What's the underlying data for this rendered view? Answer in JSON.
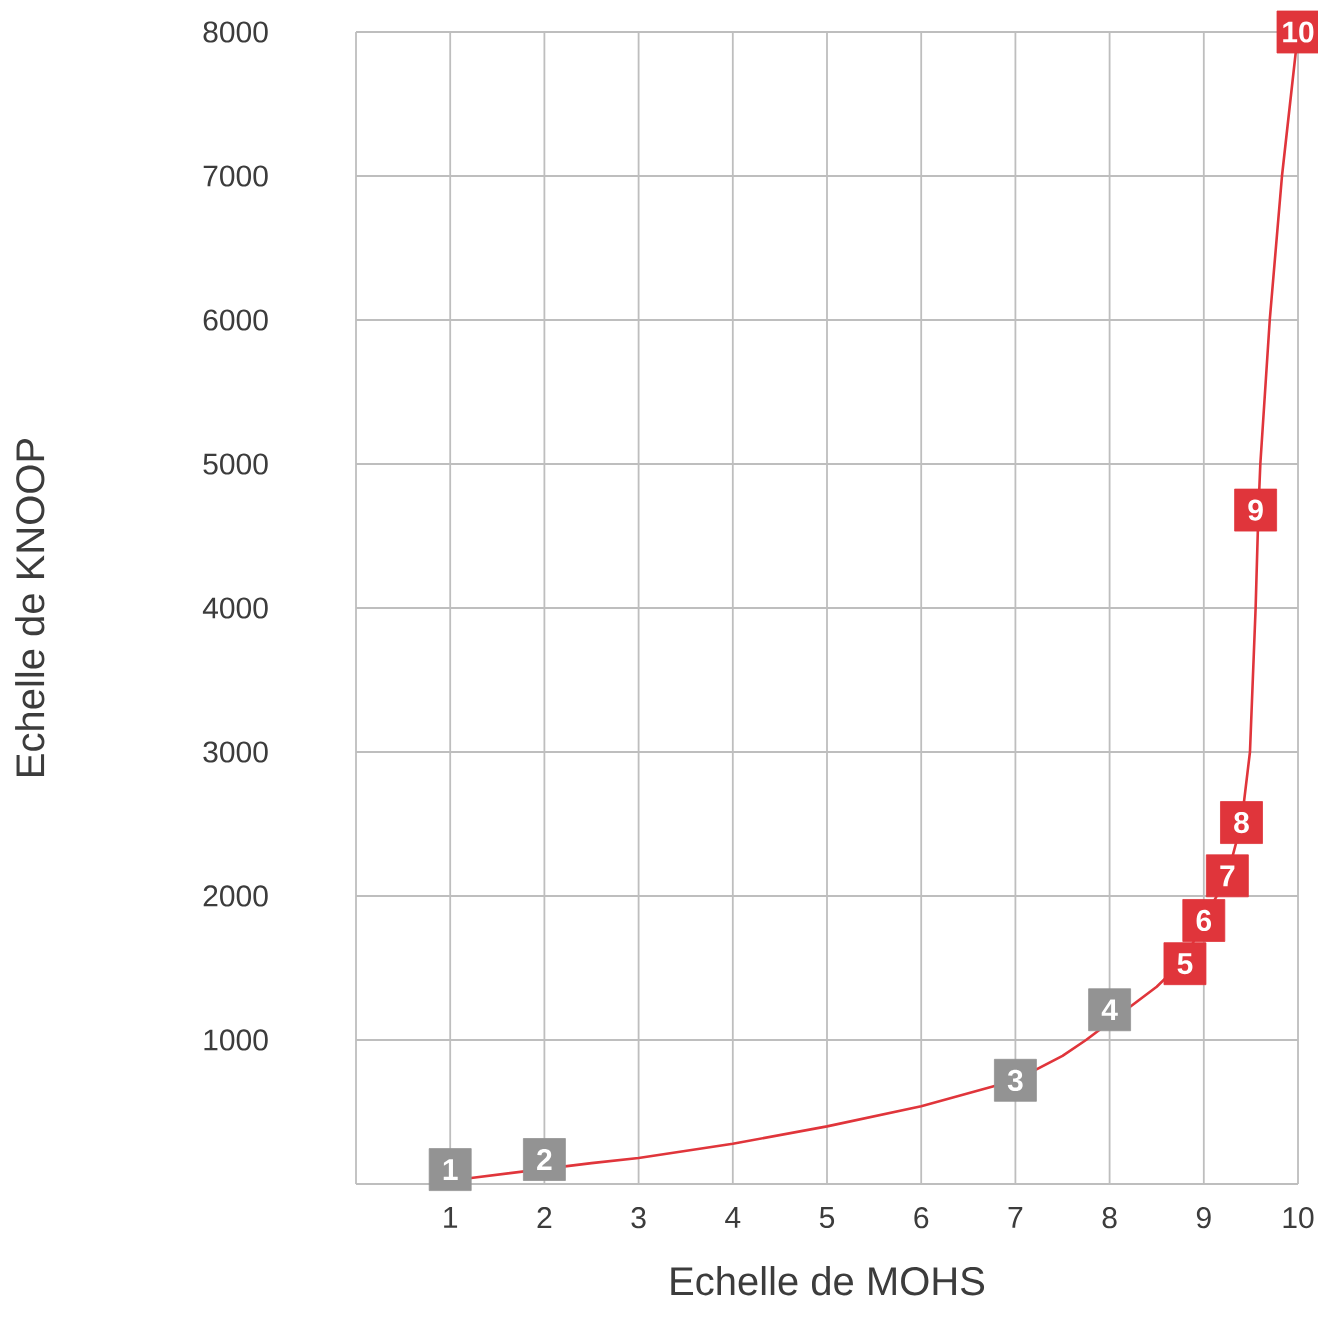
{
  "chart_data": {
    "type": "line",
    "xlabel": "Echelle de MOHS",
    "ylabel": "Echelle de KNOOP",
    "xlim": [
      0,
      10
    ],
    "ylim": [
      0,
      8000
    ],
    "xticks": [
      {
        "value": 0,
        "label": null
      },
      1,
      2,
      3,
      4,
      5,
      6,
      7,
      8,
      9,
      10
    ],
    "yticks": [
      {
        "value": 0,
        "label": null
      },
      1000,
      2000,
      3000,
      4000,
      5000,
      6000,
      7000,
      8000
    ],
    "grid": true,
    "series": [
      {
        "color": "#e0353b",
        "marker": "none",
        "line_style": "solid",
        "x": [
          1.2,
          2.5,
          3,
          4,
          5,
          6,
          7,
          7.5,
          7.75,
          8.5,
          8.8,
          9,
          9.25,
          9.4,
          9.49,
          9.55,
          9.58,
          9.6,
          9.7,
          9.83,
          10
        ],
        "values": [
          40,
          145,
          180,
          280,
          400,
          540,
          720,
          890,
          1000,
          1370,
          1560,
          1830,
          2140,
          2510,
          3000,
          4000,
          4680,
          5000,
          6000,
          7000,
          8000
        ]
      },
      {
        "type": "scatter",
        "marker": "square",
        "x": [
          1.0,
          2.0,
          7.0,
          8.0,
          8.8,
          9.0,
          9.25,
          9.4,
          9.55,
          10
        ],
        "values": [
          100,
          170,
          720,
          1210,
          1530,
          1830,
          2140,
          2510,
          4680,
          8000
        ],
        "colors": [
          "#939393",
          "#939393",
          "#939393",
          "#939393",
          "#e0353b",
          "#e0353b",
          "#e0353b",
          "#e0353b",
          "#e0353b",
          "#e0353b"
        ]
      }
    ],
    "annotations": [
      {
        "text": "1",
        "x": 1.0,
        "y": 100
      },
      {
        "text": "2",
        "x": 2.0,
        "y": 170
      },
      {
        "text": "3",
        "x": 7.0,
        "y": 720
      },
      {
        "text": "4",
        "x": 8.0,
        "y": 1210
      },
      {
        "text": "5",
        "x": 8.8,
        "y": 1530
      },
      {
        "text": "6",
        "x": 9.0,
        "y": 1830
      },
      {
        "text": "7",
        "x": 9.25,
        "y": 2140
      },
      {
        "text": "8",
        "x": 9.4,
        "y": 2510
      },
      {
        "text": "9",
        "x": 9.55,
        "y": 4680
      },
      {
        "text": "10",
        "x": 10,
        "y": 8000
      }
    ]
  }
}
